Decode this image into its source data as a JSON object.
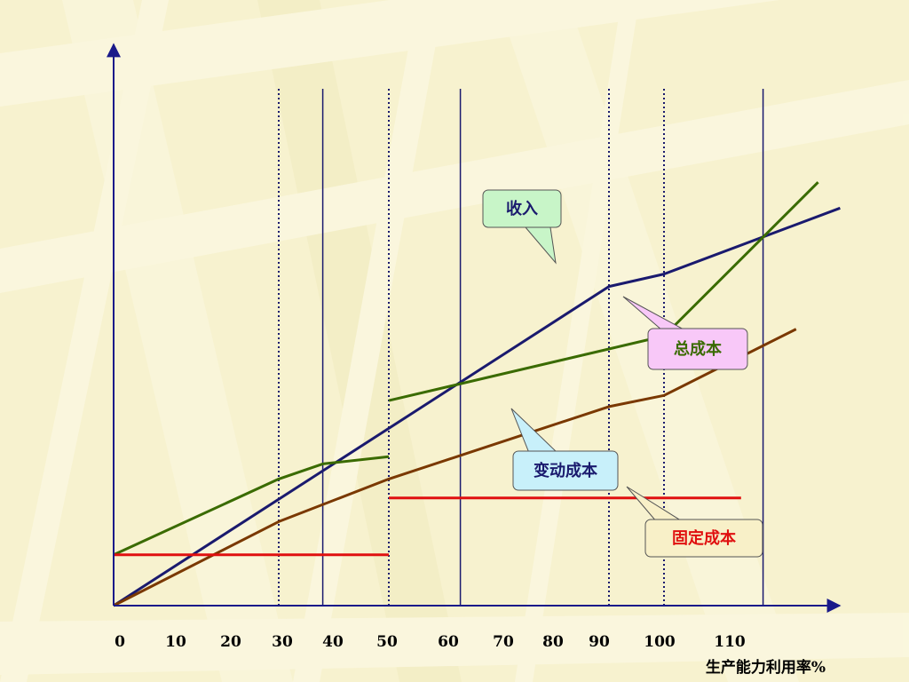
{
  "chart_data": {
    "type": "line",
    "title": "",
    "xlabel": "生产能力利用率%",
    "ylabel": "",
    "xlim": [
      0,
      130
    ],
    "ylim": [
      0,
      100
    ],
    "grid": false,
    "x_ticks": [
      "0",
      "10",
      "20",
      "30",
      "40",
      "50",
      "60",
      "70",
      "80",
      "90",
      "100",
      "110"
    ],
    "x_tick_values": [
      0,
      10,
      20,
      30,
      40,
      50,
      60,
      70,
      80,
      90,
      100,
      110
    ],
    "vertical_lines": [
      {
        "x": 30,
        "style": "dotted"
      },
      {
        "x": 38,
        "style": "solid"
      },
      {
        "x": 50,
        "style": "dotted"
      },
      {
        "x": 63,
        "style": "solid"
      },
      {
        "x": 90,
        "style": "dotted"
      },
      {
        "x": 100,
        "style": "dotted"
      },
      {
        "x": 118,
        "style": "solid"
      }
    ],
    "series": [
      {
        "name": "收入",
        "color": "#1a1a6e",
        "segments": [
          [
            [
              0,
              0
            ],
            [
              90,
              74.1
            ],
            [
              100,
              77
            ],
            [
              132,
              92.3
            ]
          ]
        ]
      },
      {
        "name": "总成本",
        "color": "#3a6b00",
        "segments": [
          [
            [
              0,
              11.8
            ],
            [
              30,
              29.4
            ],
            [
              38,
              32.9
            ],
            [
              50,
              34.6
            ]
          ],
          [
            [
              50,
              47.6
            ],
            [
              100,
              62.6
            ],
            [
              128,
              98.3
            ]
          ]
        ]
      },
      {
        "name": "变动成本",
        "color": "#7a3800",
        "segments": [
          [
            [
              0,
              0
            ],
            [
              30,
              19.5
            ],
            [
              50,
              29.4
            ],
            [
              90,
              46.2
            ],
            [
              100,
              48.8
            ],
            [
              124,
              64.2
            ]
          ]
        ]
      },
      {
        "name": "固定成本",
        "color": "#e01010",
        "segments": [
          [
            [
              0,
              11.8
            ],
            [
              50,
              11.8
            ]
          ],
          [
            [
              50,
              25
            ],
            [
              114,
              25
            ]
          ]
        ]
      }
    ],
    "callouts": [
      {
        "label": "收入",
        "series": "收入",
        "bg": "#c8f5c8",
        "text_color": "#1a1a6e"
      },
      {
        "label": "总成本",
        "series": "总成本",
        "bg": "#f8c8f8",
        "text_color": "#3a6b00"
      },
      {
        "label": "变动成本",
        "series": "变动成本",
        "bg": "#c8f0fa",
        "text_color": "#1a1a6e"
      },
      {
        "label": "固定成本",
        "series": "固定成本",
        "bg": "#f8f0c8",
        "text_color": "#e01010"
      }
    ],
    "axis_color": "#1a1a8a"
  }
}
